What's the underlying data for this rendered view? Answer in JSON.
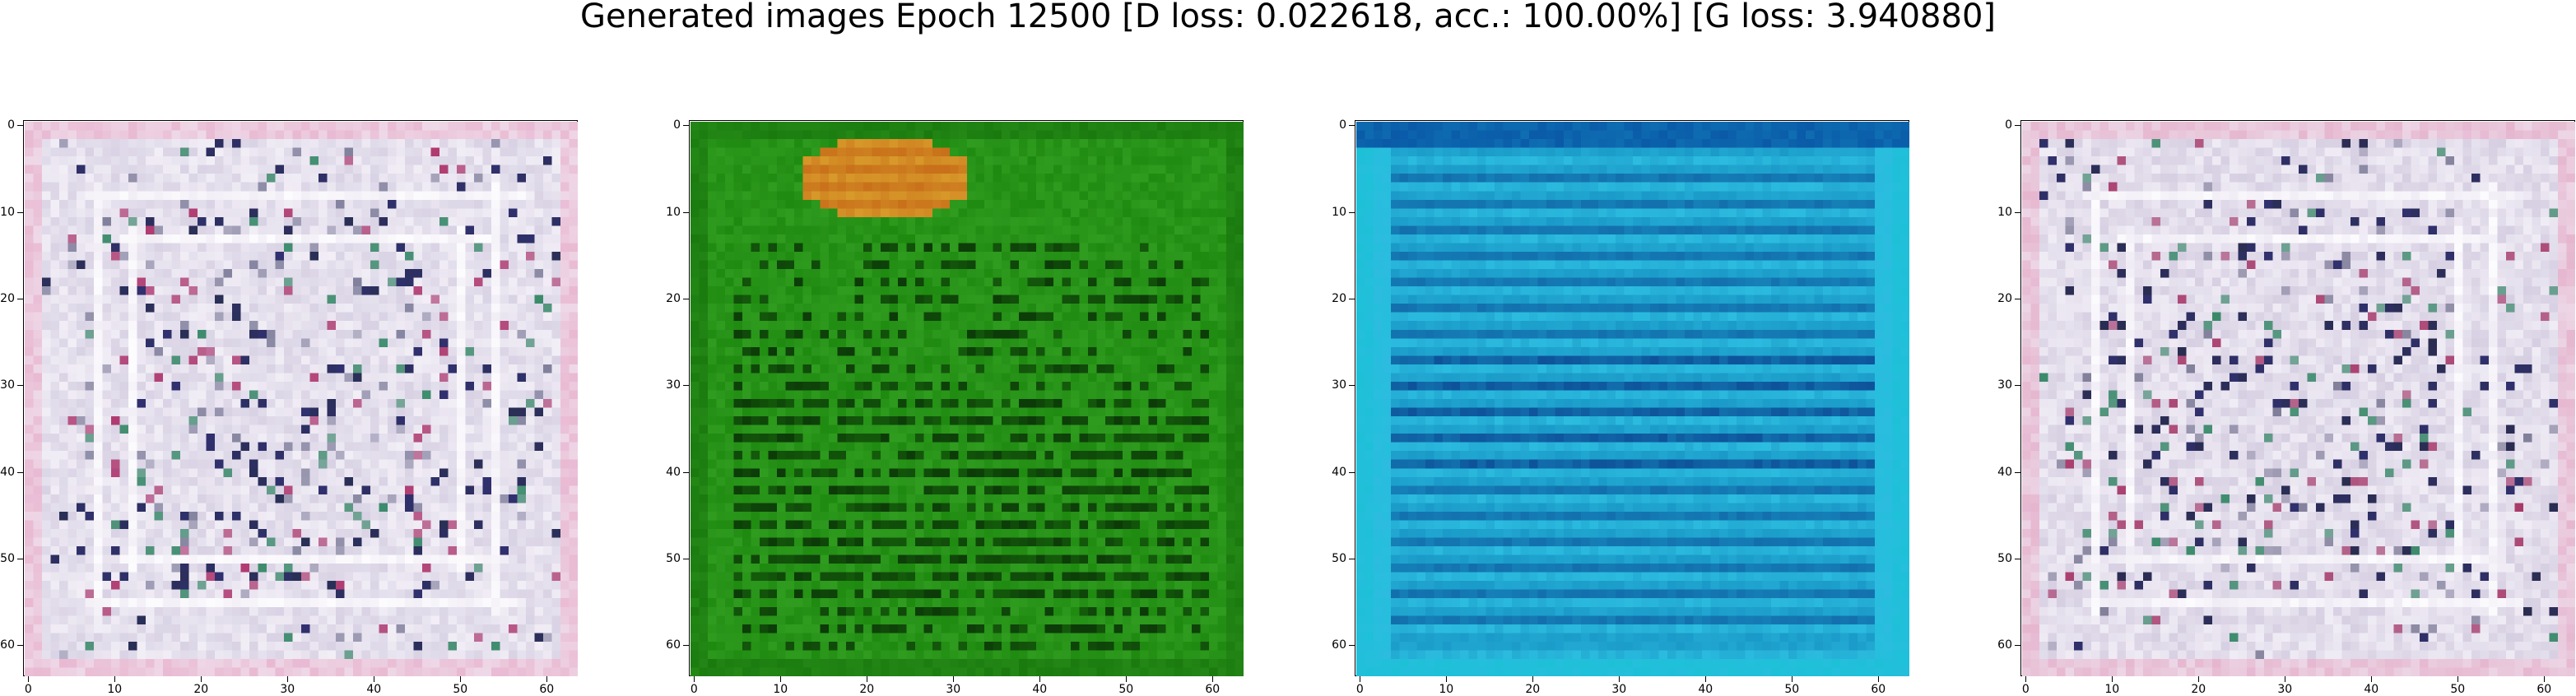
{
  "title": "Generated images Epoch 12500 [D loss: 0.022618, acc.: 100.00%] [G loss: 3.940880]",
  "chart_data": [
    {
      "type": "heatmap",
      "title": "",
      "xlabel": "",
      "ylabel": "",
      "xlim": [
        -0.5,
        63.5
      ],
      "ylim": [
        63.5,
        -0.5
      ],
      "xticks": [
        0,
        10,
        20,
        30,
        40,
        50,
        60
      ],
      "yticks": [
        0,
        10,
        20,
        30,
        40,
        50,
        60
      ],
      "grid": false,
      "pattern": "noise",
      "colors": {
        "base": "#d8d2e4",
        "light": "#f2eef6",
        "dark": "#2a2f55",
        "accent1": "#3a8a6a",
        "accent2": "#b03a70",
        "accent3": "#303070",
        "border": "#e9b9d2"
      }
    },
    {
      "type": "heatmap",
      "title": "",
      "xlabel": "",
      "ylabel": "",
      "xlim": [
        -0.5,
        63.5
      ],
      "ylim": [
        63.5,
        -0.5
      ],
      "xticks": [
        0,
        10,
        20,
        30,
        40,
        50,
        60
      ],
      "yticks": [
        0,
        10,
        20,
        30,
        40,
        50,
        60
      ],
      "grid": false,
      "pattern": "stripes",
      "colors": {
        "base": "#1f8a10",
        "light": "#3aa82a",
        "dark": "#0c3a08",
        "blob": "#d89a2a",
        "blobDark": "#c8701a",
        "border": "#1a7a0e"
      }
    },
    {
      "type": "heatmap",
      "title": "",
      "xlabel": "",
      "ylabel": "",
      "xlim": [
        -0.5,
        63.5
      ],
      "ylim": [
        63.5,
        -0.5
      ],
      "xticks": [
        0,
        10,
        20,
        30,
        40,
        50,
        60
      ],
      "yticks": [
        0,
        10,
        20,
        30,
        40,
        50,
        60
      ],
      "grid": false,
      "pattern": "stripes",
      "colors": {
        "base": "#1a9ac8",
        "light": "#2cbce0",
        "dark": "#0a3a8a",
        "border": "#1ec0d8",
        "top": "#0a5aa8"
      }
    },
    {
      "type": "heatmap",
      "title": "",
      "xlabel": "",
      "ylabel": "",
      "xlim": [
        -0.5,
        63.5
      ],
      "ylim": [
        63.5,
        -0.5
      ],
      "xticks": [
        0,
        10,
        20,
        30,
        40,
        50,
        60
      ],
      "yticks": [
        0,
        10,
        20,
        30,
        40,
        50,
        60
      ],
      "grid": false,
      "pattern": "noise",
      "colors": {
        "base": "#d6cfe2",
        "light": "#f0ecf5",
        "dark": "#2a2d50",
        "accent1": "#3a8a6a",
        "accent2": "#a83a6a",
        "accent3": "#30306e",
        "border": "#e6b6cf"
      }
    }
  ]
}
